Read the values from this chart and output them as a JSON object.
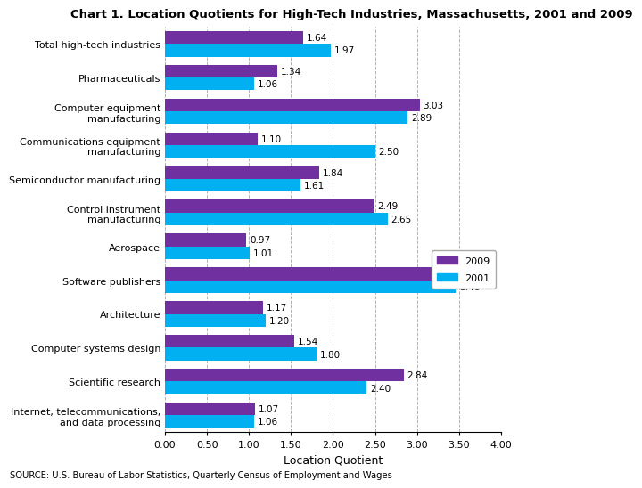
{
  "title": "Chart 1. Location Quotients for High-Tech Industries, Massachusetts, 2001 and 2009",
  "categories": [
    "Total high-tech industries",
    "Pharmaceuticals",
    "Computer equipment\nmanufacturing",
    "Communications equipment\nmanufacturing",
    "Semiconductor manufacturing",
    "Control instrument\nmanufacturing",
    "Aerospace",
    "Software publishers",
    "Architecture",
    "Computer systems design",
    "Scientific research",
    "Internet, telecommunications,\nand data processing"
  ],
  "values_2009": [
    1.64,
    1.34,
    3.03,
    1.1,
    1.84,
    2.49,
    0.97,
    3.39,
    1.17,
    1.54,
    2.84,
    1.07
  ],
  "values_2001": [
    1.97,
    1.06,
    2.89,
    2.5,
    1.61,
    2.65,
    1.01,
    3.46,
    1.2,
    1.8,
    2.4,
    1.06
  ],
  "color_2009": "#7030A0",
  "color_2001": "#00B0F0",
  "xlabel": "Location Quotient",
  "xlim": [
    0,
    4.0
  ],
  "xticks": [
    0.0,
    0.5,
    1.0,
    1.5,
    2.0,
    2.5,
    3.0,
    3.5,
    4.0
  ],
  "xtick_labels": [
    "0.00",
    "0.50",
    "1.00",
    "1.50",
    "2.00",
    "2.50",
    "3.00",
    "3.50",
    "4.00"
  ],
  "source": "SOURCE: U.S. Bureau of Labor Statistics, Quarterly Census of Employment and Wages",
  "legend_2009": "2009",
  "legend_2001": "2001",
  "bar_height": 0.38,
  "label_fontsize": 7.5,
  "title_fontsize": 9.5,
  "axis_label_fontsize": 9,
  "tick_fontsize": 8,
  "source_fontsize": 7.2,
  "fig_width": 5.8,
  "fig_height": 5.55
}
